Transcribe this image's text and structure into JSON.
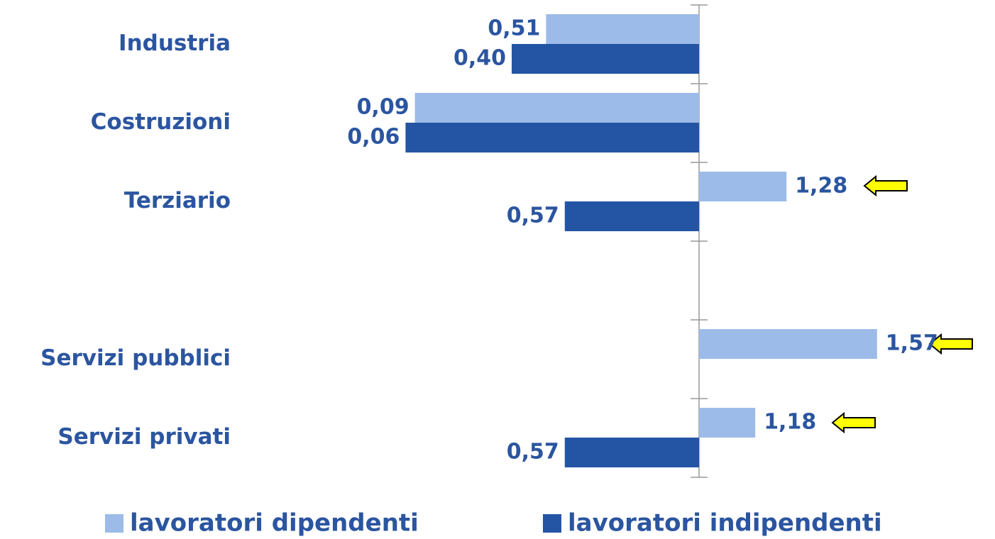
{
  "chart_data": {
    "type": "bar",
    "orientation": "horizontal",
    "baseline": 1,
    "categories": [
      "Industria",
      "Costruzioni",
      "Terziario",
      null,
      "Servizi pubblici",
      "Servizi privati"
    ],
    "series": [
      {
        "name": "lavoratori dipendenti",
        "color": "#9dbbe8",
        "values": [
          0.51,
          0.09,
          1.28,
          null,
          1.57,
          1.18
        ],
        "value_labels": [
          "0,51",
          "0,09",
          "1,28",
          null,
          "1,57",
          "1,18"
        ]
      },
      {
        "name": "lavoratori indipendenti",
        "color": "#2455a4",
        "values": [
          0.4,
          0.06,
          0.57,
          null,
          null,
          0.57
        ],
        "value_labels": [
          "0,40",
          "0,06",
          "0,57",
          null,
          null,
          "0,57"
        ]
      }
    ],
    "xlim": [
      0,
      1.9
    ],
    "legend": "bottom"
  }
}
